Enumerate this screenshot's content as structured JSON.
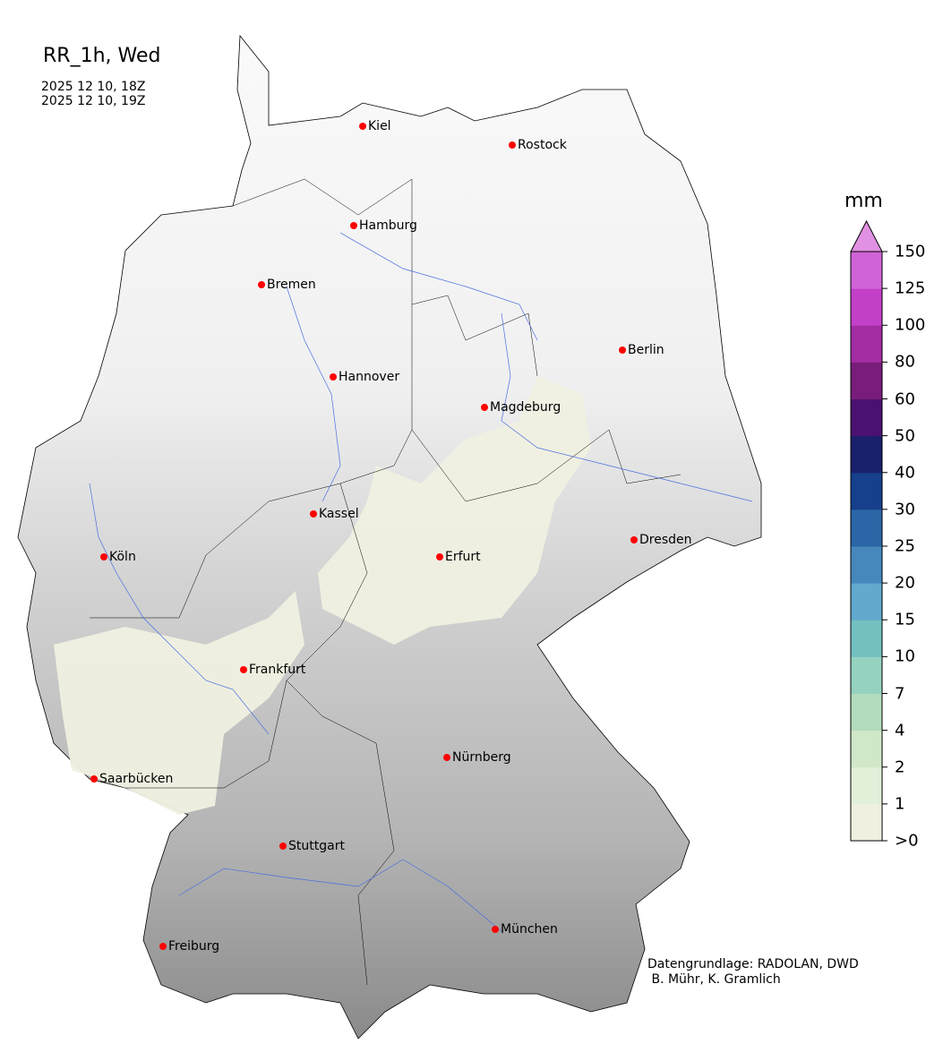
{
  "title": "RR_1h, Wed",
  "period_start": "2025 12 10, 18Z",
  "period_end": "2025 12 10, 19Z",
  "credits": "Datengrundlage: RADOLAN, DWD\n B. Mühr, K. Gramlich",
  "colorbar": {
    "unit": "mm",
    "ticks": [
      ">0",
      "1",
      "2",
      "4",
      "7",
      "10",
      "15",
      "20",
      "25",
      "30",
      "40",
      "50",
      "60",
      "80",
      "100",
      "125",
      "150"
    ],
    "colors": [
      "#f0f0e1",
      "#e2efd9",
      "#d0e8c8",
      "#b2dcbd",
      "#95d2c0",
      "#74bfc0",
      "#61a9cd",
      "#4688bb",
      "#2b66a6",
      "#163f8c",
      "#1a206a",
      "#4a1170",
      "#781d7a",
      "#a32da3",
      "#c23fc8",
      "#d063d8"
    ],
    "extend_color": "#e191e2"
  },
  "cities": [
    {
      "name": "Kiel"
    },
    {
      "name": "Rostock"
    },
    {
      "name": "Hamburg"
    },
    {
      "name": "Bremen"
    },
    {
      "name": "Berlin"
    },
    {
      "name": "Hannover"
    },
    {
      "name": "Magdeburg"
    },
    {
      "name": "Kassel"
    },
    {
      "name": "Dresden"
    },
    {
      "name": "Köln"
    },
    {
      "name": "Erfurt"
    },
    {
      "name": "Frankfurt"
    },
    {
      "name": "Nürnberg"
    },
    {
      "name": "Saarbücken"
    },
    {
      "name": "Stuttgart"
    },
    {
      "name": "München"
    },
    {
      "name": "Freiburg"
    }
  ]
}
